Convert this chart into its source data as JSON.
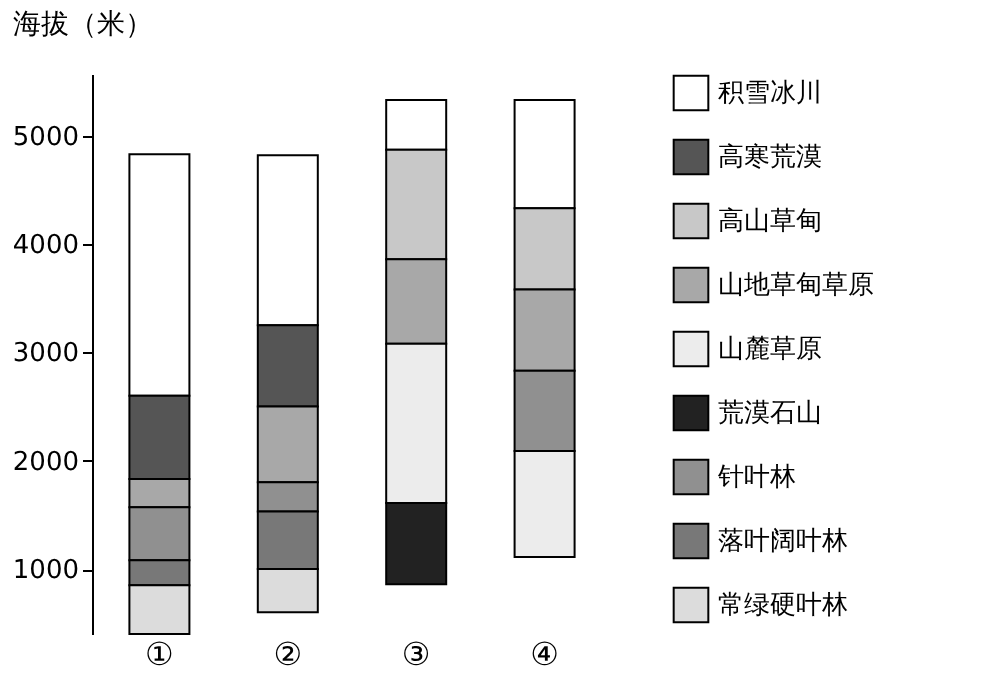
{
  "chart_data": {
    "type": "bar",
    "ylabel": "海拔（米）",
    "categories": [
      "①",
      "②",
      "③",
      "④"
    ],
    "ylim": [
      400,
      5570
    ],
    "yticks": [
      1000,
      2000,
      3000,
      4000,
      5000
    ],
    "grid": false,
    "legend": "right",
    "series": [
      {
        "name": "积雪冰川",
        "color": "#ffffff",
        "base": [
          2600,
          3250,
          4870,
          4330
        ],
        "values": [
          2230,
          1570,
          460,
          1000
        ]
      },
      {
        "name": "高寒荒漠",
        "color": "#555555",
        "base": [
          1830,
          2500,
          null,
          null
        ],
        "values": [
          770,
          750,
          null,
          null
        ]
      },
      {
        "name": "高山草甸",
        "color": "#c8c8c8",
        "base": [
          null,
          null,
          3860,
          3580
        ],
        "values": [
          null,
          null,
          1010,
          750
        ]
      },
      {
        "name": "山地草甸草原",
        "color": "#a8a8a8",
        "base": [
          1570,
          1800,
          3080,
          2830
        ],
        "values": [
          260,
          700,
          780,
          750
        ]
      },
      {
        "name": "山麓草原",
        "color": "#ececec",
        "base": [
          null,
          null,
          1610,
          1110
        ],
        "values": [
          null,
          null,
          1470,
          980
        ]
      },
      {
        "name": "荒漠石山",
        "color": "#222222",
        "base": [
          null,
          null,
          860,
          null
        ],
        "values": [
          null,
          null,
          750,
          null
        ]
      },
      {
        "name": "针叶林",
        "color": "#909090",
        "base": [
          1080,
          1530,
          null,
          2090
        ],
        "values": [
          490,
          270,
          null,
          740
        ]
      },
      {
        "name": "落叶阔叶林",
        "color": "#787878",
        "base": [
          850,
          1000,
          null,
          null
        ],
        "values": [
          230,
          530,
          null,
          null
        ]
      },
      {
        "name": "常绿硬叶林",
        "color": "#dcdcdc",
        "base": [
          400,
          600,
          null,
          null
        ],
        "values": [
          450,
          400,
          null,
          null
        ]
      }
    ]
  }
}
